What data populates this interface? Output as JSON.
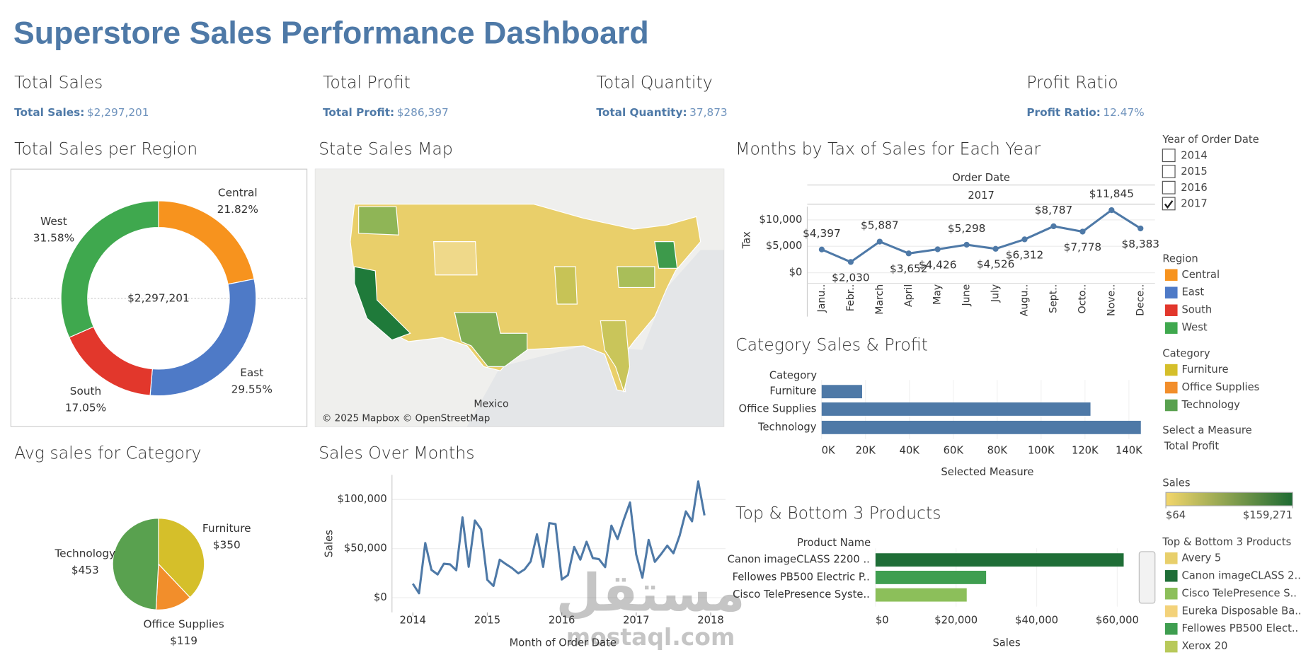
{
  "title": "Superstore Sales Performance Dashboard",
  "kpis": [
    {
      "title": "Total Sales",
      "label": "Total Sales:",
      "value": "$2,297,201"
    },
    {
      "title": "Total Profit",
      "label": "Total Profit:",
      "value": "$286,397"
    },
    {
      "title": "Total Quantity",
      "label": "Total Quantity:",
      "value": "37,873"
    },
    {
      "title": "Profit Ratio",
      "label": "Profit Ratio:",
      "value": "12.47%"
    }
  ],
  "map": {
    "title": "State Sales Map",
    "place_label": "Mexico",
    "attribution": "© 2025 Mapbox © OpenStreetMap"
  },
  "chart_data": [
    {
      "type": "donut",
      "title": "Total Sales per Region",
      "categories": [
        "Central",
        "East",
        "South",
        "West"
      ],
      "values": [
        21.82,
        29.55,
        17.05,
        31.58
      ],
      "value_labels": [
        "21.82%",
        "29.55%",
        "17.05%",
        "31.58%"
      ],
      "colors": [
        "#f7931e",
        "#4e7ac7",
        "#e2372c",
        "#3fa84e"
      ],
      "center_label": "$2,297,201"
    },
    {
      "type": "line",
      "title": "Months by Tax of Sales for Each Year",
      "header": "Order Date",
      "subheader": "2017",
      "y_label": "Tax",
      "categories": [
        "Janu..",
        "Febr..",
        "March",
        "April",
        "May",
        "June",
        "July",
        "Augu..",
        "Sept..",
        "Octo..",
        "Nove..",
        "Dece.."
      ],
      "values": [
        4397,
        2030,
        5887,
        3652,
        4426,
        5298,
        4526,
        6312,
        8787,
        7778,
        11845,
        8383
      ],
      "value_labels": [
        "$4,397",
        "$2,030",
        "$5,887",
        "$3,652",
        "$4,426",
        "$5,298",
        "$4,526",
        "$6,312",
        "$8,787",
        "$7,778",
        "$11,845",
        "$8,383"
      ],
      "color": "#4e79a7",
      "ylim": [
        -2000,
        12500
      ],
      "yticks": [
        {
          "value": 0,
          "label": "$0"
        },
        {
          "value": 5000,
          "label": "$5,000"
        },
        {
          "value": 10000,
          "label": "$10,000"
        }
      ],
      "grid": true
    },
    {
      "type": "hbar",
      "title": "Category Sales & Profit",
      "category_header": "Category",
      "x_label": "Selected Measure",
      "categories": [
        "Furniture",
        "Office Supplies",
        "Technology"
      ],
      "values": [
        18.45,
        122.49,
        145.45
      ],
      "color": "#4e79a7",
      "xlim": [
        -3.5,
        150
      ],
      "xticks": [
        {
          "value": 0,
          "label": "0K"
        },
        {
          "value": 20,
          "label": "20K"
        },
        {
          "value": 40,
          "label": "40K"
        },
        {
          "value": 60,
          "label": "60K"
        },
        {
          "value": 80,
          "label": "80K"
        },
        {
          "value": 100,
          "label": "100K"
        },
        {
          "value": 120,
          "label": "120K"
        },
        {
          "value": 140,
          "label": "140K"
        }
      ]
    },
    {
      "type": "pie",
      "title": "Avg sales for Category",
      "categories": [
        "Furniture",
        "Office Supplies",
        "Technology"
      ],
      "values": [
        350,
        119,
        453
      ],
      "value_labels": [
        "$350",
        "$119",
        "$453"
      ],
      "colors": [
        "#d5bf2a",
        "#f28e2b",
        "#59a14f"
      ]
    },
    {
      "type": "line",
      "title": "Sales Over Months",
      "x_label": "Month of Order Date",
      "y_label": "Sales",
      "color": "#4e79a7",
      "grid": true,
      "x": [
        2014,
        2014.083,
        2014.167,
        2014.25,
        2014.333,
        2014.417,
        2014.5,
        2014.583,
        2014.667,
        2014.75,
        2014.833,
        2014.917,
        2015,
        2015.083,
        2015.167,
        2015.25,
        2015.333,
        2015.417,
        2015.5,
        2015.583,
        2015.667,
        2015.75,
        2015.833,
        2015.917,
        2016,
        2016.083,
        2016.167,
        2016.25,
        2016.333,
        2016.417,
        2016.5,
        2016.583,
        2016.667,
        2016.75,
        2016.833,
        2016.917,
        2017,
        2017.083,
        2017.167,
        2017.25,
        2017.333,
        2017.417,
        2017.5,
        2017.583,
        2017.667,
        2017.75,
        2017.833,
        2017.917
      ],
      "values": [
        14237,
        4520,
        55691,
        28295,
        23648,
        34595,
        33946,
        27909,
        81777,
        31453,
        78629,
        69546,
        18174,
        11951,
        38726,
        34195,
        30132,
        24797,
        28765,
        36898,
        64596,
        31405,
        75973,
        74920,
        18542,
        22979,
        51716,
        38750,
        56988,
        40344,
        39262,
        31115,
        73410,
        59688,
        79412,
        96999,
        43971,
        20301,
        58872,
        36522,
        44261,
        52982,
        45264,
        63121,
        87867,
        77777,
        118448,
        83829
      ],
      "xlim": [
        2013.72,
        2018.2
      ],
      "xticks": [
        2014,
        2015,
        2016,
        2017,
        2018
      ],
      "ylim": [
        -15000,
        125000
      ],
      "yticks": [
        {
          "value": 0,
          "label": "$0"
        },
        {
          "value": 50000,
          "label": "$50,000"
        },
        {
          "value": 100000,
          "label": "$100,000"
        }
      ]
    },
    {
      "type": "hbar",
      "title": "Top & Bottom 3 Products",
      "category_header": "Product Name",
      "x_label": "Sales",
      "categories": [
        "Canon imageCLASS 2200 ..",
        "Fellowes PB500 Electric P..",
        "Cisco TelePresence Syste.."
      ],
      "values": [
        61600,
        27453,
        22638
      ],
      "colors": [
        "#1f6e37",
        "#3f9e50",
        "#8cbf5a"
      ],
      "xlim": [
        -1000,
        64200
      ],
      "xticks": [
        {
          "value": 0,
          "label": "$0"
        },
        {
          "value": 20000,
          "label": "$20,000"
        },
        {
          "value": 40000,
          "label": "$40,000"
        },
        {
          "value": 60000,
          "label": "$60,000"
        }
      ]
    }
  ],
  "legends": {
    "year": {
      "title": "Year of Order Date",
      "items": [
        "2014",
        "2015",
        "2016",
        "2017"
      ],
      "selected": 3
    },
    "region": {
      "title": "Region",
      "items": [
        "Central",
        "East",
        "South",
        "West"
      ],
      "colors": [
        "#f7931e",
        "#4e7ac7",
        "#e2372c",
        "#3fa84e"
      ]
    },
    "category": {
      "title": "Category",
      "items": [
        "Furniture",
        "Office Supplies",
        "Technology"
      ],
      "colors": [
        "#d5bf2a",
        "#f28e2b",
        "#59a14f"
      ]
    },
    "measure": {
      "title": "Select a Measure",
      "value": "Total Profit"
    },
    "sales_scale": {
      "title": "Sales",
      "colors": [
        "#f3d66b",
        "#1e6b33"
      ],
      "ticks": [
        {
          "value": 64,
          "label": "$64"
        },
        {
          "value": 159271,
          "label": "$159,271"
        }
      ]
    },
    "products": {
      "title": "Top & Bottom 3 Products",
      "items": [
        "Avery 5",
        "Canon imageCLASS 2..",
        "Cisco TelePresence S..",
        "Eureka Disposable Ba..",
        "Fellowes PB500 Elect..",
        "Xerox 20"
      ],
      "colors": [
        "#e8cf6b",
        "#1f6e37",
        "#8cbf5a",
        "#f3d27a",
        "#3f9e50",
        "#b8c95a"
      ]
    }
  },
  "watermark": [
    "مستقل",
    "mostaql.com"
  ]
}
